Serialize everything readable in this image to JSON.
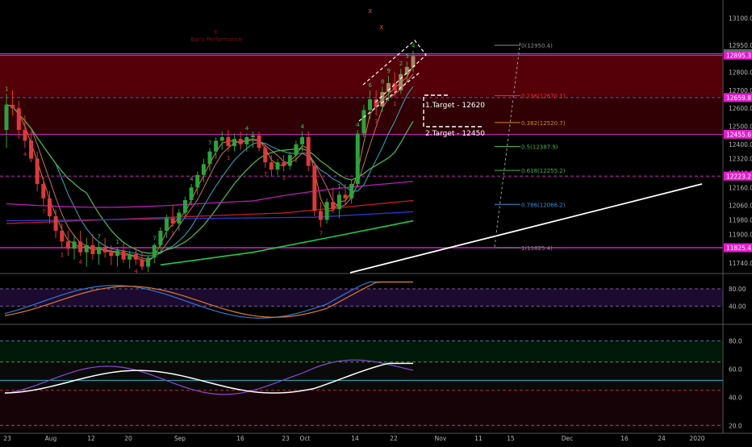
{
  "chart_data": [
    {
      "type": "candlestick",
      "panel": "price",
      "ylim": [
        11700,
        13130
      ],
      "y_ticks": [
        "13100.0",
        "12950.0",
        "12800.0",
        "12700.0",
        "12600.0",
        "12500.0",
        "12400.0",
        "12320.0",
        "12240.0",
        "12160.0",
        "12060.0",
        "11980.0",
        "11900.0",
        "11820.0",
        "11740.0"
      ],
      "x_ticks": [
        "23",
        "Aug",
        "12",
        "20",
        "Sep",
        "16",
        "23",
        "Oct",
        "14",
        "22",
        "Nov",
        "11",
        "15",
        "Dec",
        "16",
        "24",
        "2020"
      ],
      "price_boxes": [
        {
          "value": 12904.2,
          "label": "12904.2",
          "color": "#1e8a3a"
        },
        {
          "value": 12895.3,
          "label": "12895.3",
          "color": "#e61ccc"
        },
        {
          "value": 12659.8,
          "label": "12659.8",
          "color": "#e61ccc"
        },
        {
          "value": 12455.6,
          "label": "12455.6",
          "color": "#e61ccc"
        },
        {
          "value": 12223.2,
          "label": "12223.2",
          "color": "#e61ccc"
        },
        {
          "value": 11825.4,
          "label": "11825.4",
          "color": "#e61ccc"
        }
      ],
      "zone": {
        "from": 12455.6,
        "to": 12895.3,
        "color": "#5a0008"
      },
      "fib_levels": [
        {
          "label": "0(12950.4)",
          "value": 12950.4,
          "color": "#888888"
        },
        {
          "label": "0.236(12670.1)",
          "value": 12670.1,
          "color": "#e8353a"
        },
        {
          "label": "0.382(12520.7)",
          "value": 12520.7,
          "color": "#d4881e"
        },
        {
          "label": "0.5(12387.9)",
          "value": 12387.9,
          "color": "#3ab54a"
        },
        {
          "label": "0.618(12255.2)",
          "value": 12255.2,
          "color": "#3ab54a"
        },
        {
          "label": "0.786(12066.2)",
          "value": 12066.2,
          "color": "#3a8fd4"
        },
        {
          "label": "1(11825.4)",
          "value": 11825.4,
          "color": "#888888"
        }
      ],
      "annotations": {
        "target1": "1.Target - 12620",
        "target2": "2.Target - 12450",
        "faded_label": "Bar's Performance",
        "faded_letter": "E"
      },
      "candles": [
        [
          12480,
          12680,
          12380,
          12620
        ],
        [
          12620,
          12700,
          12560,
          12600
        ],
        [
          12600,
          12640,
          12430,
          12480
        ],
        [
          12480,
          12560,
          12380,
          12420
        ],
        [
          12420,
          12470,
          12300,
          12320
        ],
        [
          12320,
          12360,
          12140,
          12180
        ],
        [
          12180,
          12220,
          12060,
          12100
        ],
        [
          12100,
          12140,
          11960,
          12000
        ],
        [
          12000,
          12040,
          11880,
          11920
        ],
        [
          11920,
          11960,
          11820,
          11860
        ],
        [
          11860,
          11920,
          11780,
          11820
        ],
        [
          11820,
          11900,
          11760,
          11860
        ],
        [
          11860,
          11920,
          11780,
          11800
        ],
        [
          11800,
          11880,
          11720,
          11840
        ],
        [
          11840,
          11900,
          11760,
          11790
        ],
        [
          11790,
          11860,
          11730,
          11830
        ],
        [
          11830,
          11880,
          11770,
          11800
        ],
        [
          11800,
          11840,
          11730,
          11780
        ],
        [
          11780,
          11830,
          11720,
          11810
        ],
        [
          11810,
          11850,
          11740,
          11760
        ],
        [
          11760,
          11810,
          11710,
          11790
        ],
        [
          11790,
          11830,
          11730,
          11760
        ],
        [
          11760,
          11800,
          11700,
          11720
        ],
        [
          11720,
          11780,
          11690,
          11770
        ],
        [
          11770,
          11850,
          11740,
          11840
        ],
        [
          11840,
          11940,
          11810,
          11920
        ],
        [
          11920,
          12010,
          11880,
          11990
        ],
        [
          11990,
          12060,
          11940,
          11960
        ],
        [
          11960,
          12040,
          11920,
          12020
        ],
        [
          12020,
          12110,
          11990,
          12090
        ],
        [
          12090,
          12180,
          12060,
          12160
        ],
        [
          12160,
          12250,
          12120,
          12230
        ],
        [
          12230,
          12320,
          12190,
          12290
        ],
        [
          12290,
          12380,
          12250,
          12360
        ],
        [
          12360,
          12440,
          12320,
          12420
        ],
        [
          12420,
          12470,
          12370,
          12440
        ],
        [
          12440,
          12480,
          12360,
          12390
        ],
        [
          12390,
          12460,
          12360,
          12430
        ],
        [
          12430,
          12470,
          12370,
          12400
        ],
        [
          12400,
          12460,
          12360,
          12440
        ],
        [
          12440,
          12470,
          12380,
          12450
        ],
        [
          12450,
          12470,
          12360,
          12380
        ],
        [
          12380,
          12400,
          12270,
          12300
        ],
        [
          12300,
          12340,
          12220,
          12260
        ],
        [
          12260,
          12320,
          12230,
          12300
        ],
        [
          12300,
          12340,
          12250,
          12280
        ],
        [
          12280,
          12360,
          12260,
          12340
        ],
        [
          12340,
          12420,
          12300,
          12400
        ],
        [
          12400,
          12470,
          12360,
          12440
        ],
        [
          12440,
          12470,
          12250,
          12280
        ],
        [
          12280,
          12300,
          12000,
          12030
        ],
        [
          12030,
          12080,
          11940,
          11980
        ],
        [
          11980,
          12100,
          11960,
          12080
        ],
        [
          12080,
          12160,
          12020,
          12040
        ],
        [
          12040,
          12140,
          11990,
          12120
        ],
        [
          12120,
          12180,
          12060,
          12100
        ],
        [
          12100,
          12200,
          12070,
          12180
        ],
        [
          12180,
          12480,
          12160,
          12460
        ],
        [
          12460,
          12620,
          12440,
          12590
        ],
        [
          12590,
          12700,
          12540,
          12650
        ],
        [
          12650,
          12700,
          12560,
          12610
        ],
        [
          12610,
          12720,
          12580,
          12690
        ],
        [
          12690,
          12780,
          12640,
          12740
        ],
        [
          12740,
          12800,
          12660,
          12700
        ],
        [
          12700,
          12820,
          12680,
          12790
        ],
        [
          12790,
          12860,
          12750,
          12830
        ],
        [
          12830,
          12920,
          12800,
          12890
        ]
      ]
    },
    {
      "type": "line",
      "panel": "stochastic",
      "ylim": [
        5,
        110
      ],
      "y_ticks": [
        "80.00",
        "40.00"
      ],
      "band": [
        40,
        80
      ]
    },
    {
      "type": "line",
      "panel": "rsi",
      "ylim": [
        15,
        90
      ],
      "y_ticks": [
        "80.0",
        "60.0",
        "40.0",
        "20.0"
      ],
      "band": [
        45,
        65
      ]
    }
  ]
}
